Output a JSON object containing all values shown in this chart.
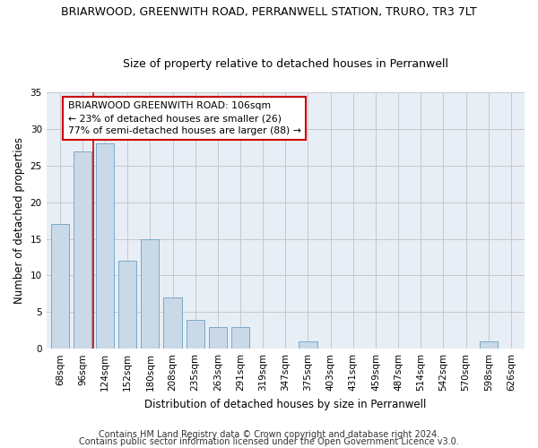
{
  "title1": "BRIARWOOD, GREENWITH ROAD, PERRANWELL STATION, TRURO, TR3 7LT",
  "title2": "Size of property relative to detached houses in Perranwell",
  "xlabel": "Distribution of detached houses by size in Perranwell",
  "ylabel": "Number of detached properties",
  "categories": [
    "68sqm",
    "96sqm",
    "124sqm",
    "152sqm",
    "180sqm",
    "208sqm",
    "235sqm",
    "263sqm",
    "291sqm",
    "319sqm",
    "347sqm",
    "375sqm",
    "403sqm",
    "431sqm",
    "459sqm",
    "487sqm",
    "514sqm",
    "542sqm",
    "570sqm",
    "598sqm",
    "626sqm"
  ],
  "values": [
    17,
    27,
    28,
    12,
    15,
    7,
    4,
    3,
    3,
    0,
    0,
    1,
    0,
    0,
    0,
    0,
    0,
    0,
    0,
    1,
    0
  ],
  "bar_color": "#c9d9e8",
  "bar_edge_color": "#7aaac8",
  "vline_color": "#cc0000",
  "vline_x_index": 1.5,
  "annotation_text": "BRIARWOOD GREENWITH ROAD: 106sqm\n← 23% of detached houses are smaller (26)\n77% of semi-detached houses are larger (88) →",
  "annotation_box_color": "#ffffff",
  "annotation_box_edge": "#cc0000",
  "ylim": [
    0,
    35
  ],
  "yticks": [
    0,
    5,
    10,
    15,
    20,
    25,
    30,
    35
  ],
  "footer1": "Contains HM Land Registry data © Crown copyright and database right 2024.",
  "footer2": "Contains public sector information licensed under the Open Government Licence v3.0.",
  "bg_color": "#ffffff",
  "plot_bg_color": "#e8eef5",
  "grid_color": "#c8c8c8",
  "title1_fontsize": 9,
  "title2_fontsize": 9,
  "axis_label_fontsize": 8.5,
  "tick_fontsize": 7.5,
  "annotation_fontsize": 7.8,
  "footer_fontsize": 7
}
